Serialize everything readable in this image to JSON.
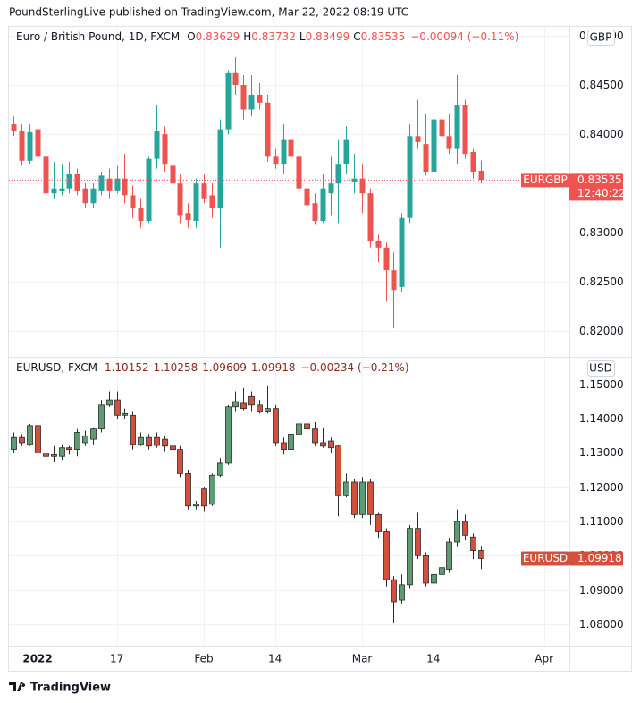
{
  "header": {
    "text": "PoundSterlingLive published on TradingView.com, Mar 22, 2022 08:19 UTC"
  },
  "footer": {
    "logo": "TradingView"
  },
  "chart_data": [
    {
      "type": "candlestick",
      "title": "Euro / British Pound, 1D, FXCM",
      "ohlc_letters": [
        "O",
        "H",
        "L",
        "C"
      ],
      "change": "−0.00094 (−0.11%)",
      "currency": "GBP",
      "symbol": "EURGBP",
      "countdown": "12:40:22",
      "up_color": "#26a69a",
      "down_color": "#ef5350",
      "header_color": "#ef5350",
      "xlim": [
        -0.62,
        70.2
      ],
      "ylim": [
        0.8175,
        0.8509
      ],
      "yticks": [
        {
          "value": 0.82,
          "label": "0.82000"
        },
        {
          "value": 0.825,
          "label": "0.82500"
        },
        {
          "value": 0.83,
          "label": "0.83000"
        },
        {
          "value": 0.835,
          "label": "0.83500"
        },
        {
          "value": 0.84,
          "label": "0.84000"
        },
        {
          "value": 0.845,
          "label": "0.84500"
        },
        {
          "value": 0.85,
          "label": "0.85000"
        }
      ],
      "open": [
        0.841,
        0.8403,
        0.8373,
        0.8405,
        0.8378,
        0.834,
        0.8342,
        0.8345,
        0.836,
        0.8345,
        0.833,
        0.8343,
        0.8355,
        0.8343,
        0.8355,
        0.8338,
        0.8325,
        0.8312,
        0.8375,
        0.84,
        0.8368,
        0.835,
        0.832,
        0.8312,
        0.835,
        0.8338,
        0.8325,
        0.8405,
        0.8462,
        0.845,
        0.8425,
        0.844,
        0.8432,
        0.8378,
        0.837,
        0.8395,
        0.8378,
        0.8345,
        0.833,
        0.8312,
        0.834,
        0.835,
        0.837,
        0.8352,
        0.8355,
        0.834,
        0.8292,
        0.8285,
        0.8262,
        0.8245,
        0.8315,
        0.8398,
        0.839,
        0.8362,
        0.8415,
        0.8398,
        0.8385,
        0.843,
        0.8382,
        0.83629
      ],
      "high": [
        0.8418,
        0.841,
        0.841,
        0.841,
        0.8385,
        0.8372,
        0.837,
        0.8372,
        0.8365,
        0.835,
        0.835,
        0.8362,
        0.8365,
        0.8368,
        0.838,
        0.8348,
        0.8335,
        0.8378,
        0.843,
        0.8408,
        0.8375,
        0.836,
        0.833,
        0.8355,
        0.836,
        0.835,
        0.8415,
        0.8465,
        0.8478,
        0.846,
        0.846,
        0.8452,
        0.844,
        0.8385,
        0.841,
        0.8405,
        0.8385,
        0.836,
        0.834,
        0.836,
        0.8378,
        0.8395,
        0.8408,
        0.838,
        0.837,
        0.8345,
        0.8298,
        0.829,
        0.828,
        0.832,
        0.841,
        0.8435,
        0.842,
        0.8428,
        0.8455,
        0.842,
        0.846,
        0.8435,
        0.8385,
        0.83732
      ],
      "low": [
        0.8398,
        0.8368,
        0.837,
        0.8375,
        0.8335,
        0.8335,
        0.8338,
        0.834,
        0.8338,
        0.8325,
        0.8325,
        0.8338,
        0.8335,
        0.834,
        0.833,
        0.8315,
        0.8305,
        0.831,
        0.8365,
        0.8362,
        0.834,
        0.831,
        0.8305,
        0.8305,
        0.833,
        0.8315,
        0.8285,
        0.84,
        0.844,
        0.8415,
        0.8418,
        0.8425,
        0.8372,
        0.8365,
        0.836,
        0.837,
        0.834,
        0.8322,
        0.8308,
        0.831,
        0.8318,
        0.831,
        0.836,
        0.834,
        0.832,
        0.8285,
        0.827,
        0.823,
        0.8203,
        0.824,
        0.831,
        0.8385,
        0.8358,
        0.8358,
        0.839,
        0.838,
        0.837,
        0.8375,
        0.8355,
        0.83499
      ],
      "close": [
        0.8403,
        0.8373,
        0.8402,
        0.8378,
        0.834,
        0.8345,
        0.8345,
        0.836,
        0.8343,
        0.833,
        0.8345,
        0.8358,
        0.8343,
        0.8355,
        0.8338,
        0.8325,
        0.8312,
        0.8375,
        0.8403,
        0.837,
        0.835,
        0.8318,
        0.8313,
        0.835,
        0.8335,
        0.8325,
        0.8405,
        0.8462,
        0.845,
        0.8425,
        0.844,
        0.8432,
        0.8378,
        0.837,
        0.8395,
        0.8378,
        0.8345,
        0.8328,
        0.8312,
        0.8345,
        0.835,
        0.837,
        0.8395,
        0.8355,
        0.834,
        0.8292,
        0.8285,
        0.8262,
        0.8242,
        0.8315,
        0.8398,
        0.8392,
        0.8362,
        0.8415,
        0.8398,
        0.8385,
        0.843,
        0.838,
        0.8362,
        0.83535
      ]
    },
    {
      "type": "candlestick",
      "title": "EURUSD, FXCM",
      "change": "−0.00234 (−0.21%)",
      "currency": "USD",
      "symbol": "EURUSD",
      "up_color": "#5e9b72",
      "down_color": "#d4503e",
      "border_color": "#2b2b2b",
      "header_color": "#8a2a1c",
      "xlim": [
        -0.62,
        70.2
      ],
      "ylim": [
        1.0737,
        1.1578
      ],
      "yticks": [
        {
          "value": 1.08,
          "label": "1.08000"
        },
        {
          "value": 1.09,
          "label": "1.09000"
        },
        {
          "value": 1.1,
          "label": "1.10000"
        },
        {
          "value": 1.11,
          "label": "1.11000"
        },
        {
          "value": 1.12,
          "label": "1.12000"
        },
        {
          "value": 1.13,
          "label": "1.13000"
        },
        {
          "value": 1.14,
          "label": "1.14000"
        },
        {
          "value": 1.15,
          "label": "1.15000"
        }
      ],
      "xticks": [
        {
          "value": 3,
          "label": "2022"
        },
        {
          "value": 13,
          "label": "17"
        },
        {
          "value": 24,
          "label": "Feb"
        },
        {
          "value": 33,
          "label": "14"
        },
        {
          "value": 44,
          "label": "Mar"
        },
        {
          "value": 53,
          "label": "14"
        },
        {
          "value": 67,
          "label": "Apr"
        }
      ],
      "open": [
        1.131,
        1.1345,
        1.1325,
        1.138,
        1.13,
        1.129,
        1.129,
        1.1315,
        1.131,
        1.133,
        1.134,
        1.137,
        1.144,
        1.1455,
        1.141,
        1.141,
        1.1325,
        1.1345,
        1.1345,
        1.134,
        1.132,
        1.131,
        1.124,
        1.1145,
        1.1195,
        1.115,
        1.1235,
        1.127,
        1.1435,
        1.1445,
        1.1465,
        1.144,
        1.142,
        1.143,
        1.133,
        1.131,
        1.1355,
        1.1385,
        1.137,
        1.133,
        1.1335,
        1.132,
        1.1175,
        1.1215,
        1.112,
        1.1215,
        1.112,
        1.107,
        1.093,
        1.087,
        1.0915,
        1.108,
        1.1,
        1.092,
        1.0945,
        1.096,
        1.104,
        1.11,
        1.1055,
        1.10152
      ],
      "high": [
        1.136,
        1.1355,
        1.1385,
        1.1385,
        1.131,
        1.132,
        1.1325,
        1.132,
        1.137,
        1.1365,
        1.1375,
        1.1455,
        1.148,
        1.148,
        1.143,
        1.142,
        1.136,
        1.1355,
        1.136,
        1.135,
        1.133,
        1.132,
        1.125,
        1.116,
        1.12,
        1.124,
        1.1285,
        1.144,
        1.148,
        1.149,
        1.148,
        1.1455,
        1.1495,
        1.144,
        1.1345,
        1.1365,
        1.14,
        1.14,
        1.139,
        1.1375,
        1.1345,
        1.1325,
        1.124,
        1.1225,
        1.123,
        1.1225,
        1.1125,
        1.108,
        1.094,
        1.0945,
        1.109,
        1.1125,
        1.101,
        1.096,
        1.0975,
        1.105,
        1.1135,
        1.112,
        1.1065,
        1.10258
      ],
      "low": [
        1.13,
        1.132,
        1.132,
        1.129,
        1.1275,
        1.1275,
        1.128,
        1.1295,
        1.129,
        1.132,
        1.1325,
        1.136,
        1.1435,
        1.14,
        1.14,
        1.131,
        1.132,
        1.131,
        1.1315,
        1.1305,
        1.128,
        1.123,
        1.1135,
        1.1135,
        1.113,
        1.1145,
        1.123,
        1.1265,
        1.142,
        1.1425,
        1.142,
        1.1415,
        1.1415,
        1.132,
        1.1295,
        1.13,
        1.135,
        1.1355,
        1.132,
        1.1315,
        1.13,
        1.1115,
        1.117,
        1.111,
        1.111,
        1.109,
        1.105,
        1.091,
        1.0805,
        1.086,
        1.0905,
        1.099,
        1.091,
        1.091,
        1.0935,
        1.095,
        1.1025,
        1.1045,
        1.099,
        1.09609
      ],
      "close": [
        1.1345,
        1.133,
        1.138,
        1.13,
        1.129,
        1.1295,
        1.1315,
        1.131,
        1.136,
        1.135,
        1.137,
        1.144,
        1.1455,
        1.141,
        1.1415,
        1.1325,
        1.1345,
        1.132,
        1.1322,
        1.132,
        1.131,
        1.124,
        1.1145,
        1.115,
        1.1145,
        1.1235,
        1.127,
        1.1435,
        1.145,
        1.143,
        1.144,
        1.142,
        1.143,
        1.133,
        1.131,
        1.1355,
        1.1385,
        1.137,
        1.133,
        1.132,
        1.1315,
        1.1175,
        1.1215,
        1.112,
        1.1215,
        1.112,
        1.107,
        1.093,
        1.0865,
        1.0915,
        1.108,
        1.1,
        1.092,
        1.0945,
        1.0965,
        1.104,
        1.11,
        1.106,
        1.1015,
        1.09918
      ]
    }
  ]
}
